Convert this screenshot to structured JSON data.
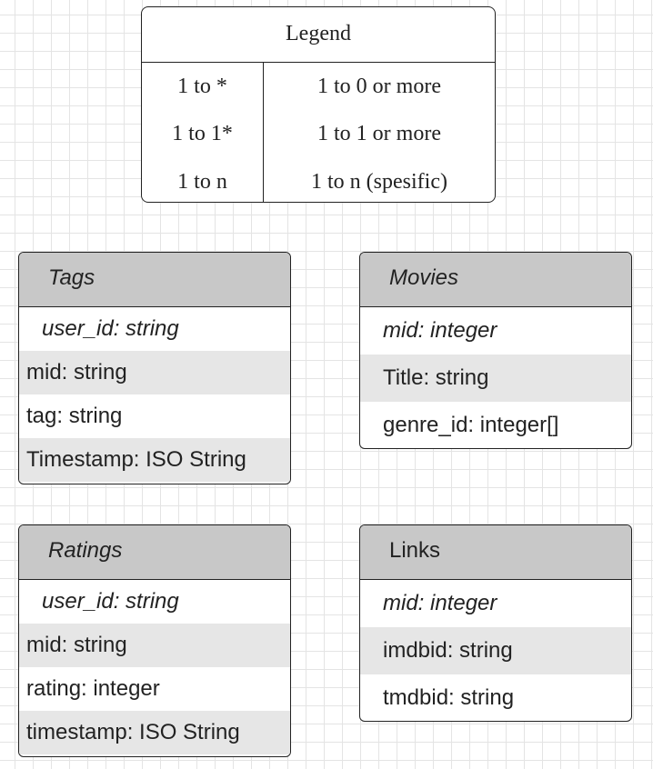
{
  "legend": {
    "title": "Legend",
    "rows": [
      {
        "key": "1 to *",
        "value": "1 to 0 or more"
      },
      {
        "key": "1 to 1*",
        "value": "1 to 1 or more"
      },
      {
        "key": "1 to n",
        "value": "1 to n (spesific)"
      }
    ]
  },
  "entities": {
    "tags": {
      "title": "Tags",
      "fields": [
        "user_id: string",
        "mid: string",
        "tag: string",
        "Timestamp: ISO String"
      ]
    },
    "movies": {
      "title": "Movies",
      "fields": [
        "mid: integer",
        "Title: string",
        "genre_id: integer[]"
      ]
    },
    "ratings": {
      "title": "Ratings",
      "fields": [
        "user_id: string",
        "mid: string",
        "rating: integer",
        "timestamp: ISO String"
      ]
    },
    "links": {
      "title": "Links",
      "fields": [
        "mid: integer",
        "imdbid: string",
        "tmdbid: string"
      ]
    }
  },
  "colors": {
    "header": "#c8c8c8",
    "shaded_row": "#e6e6e6",
    "border": "#222222",
    "grid": "#e4e4e4"
  }
}
